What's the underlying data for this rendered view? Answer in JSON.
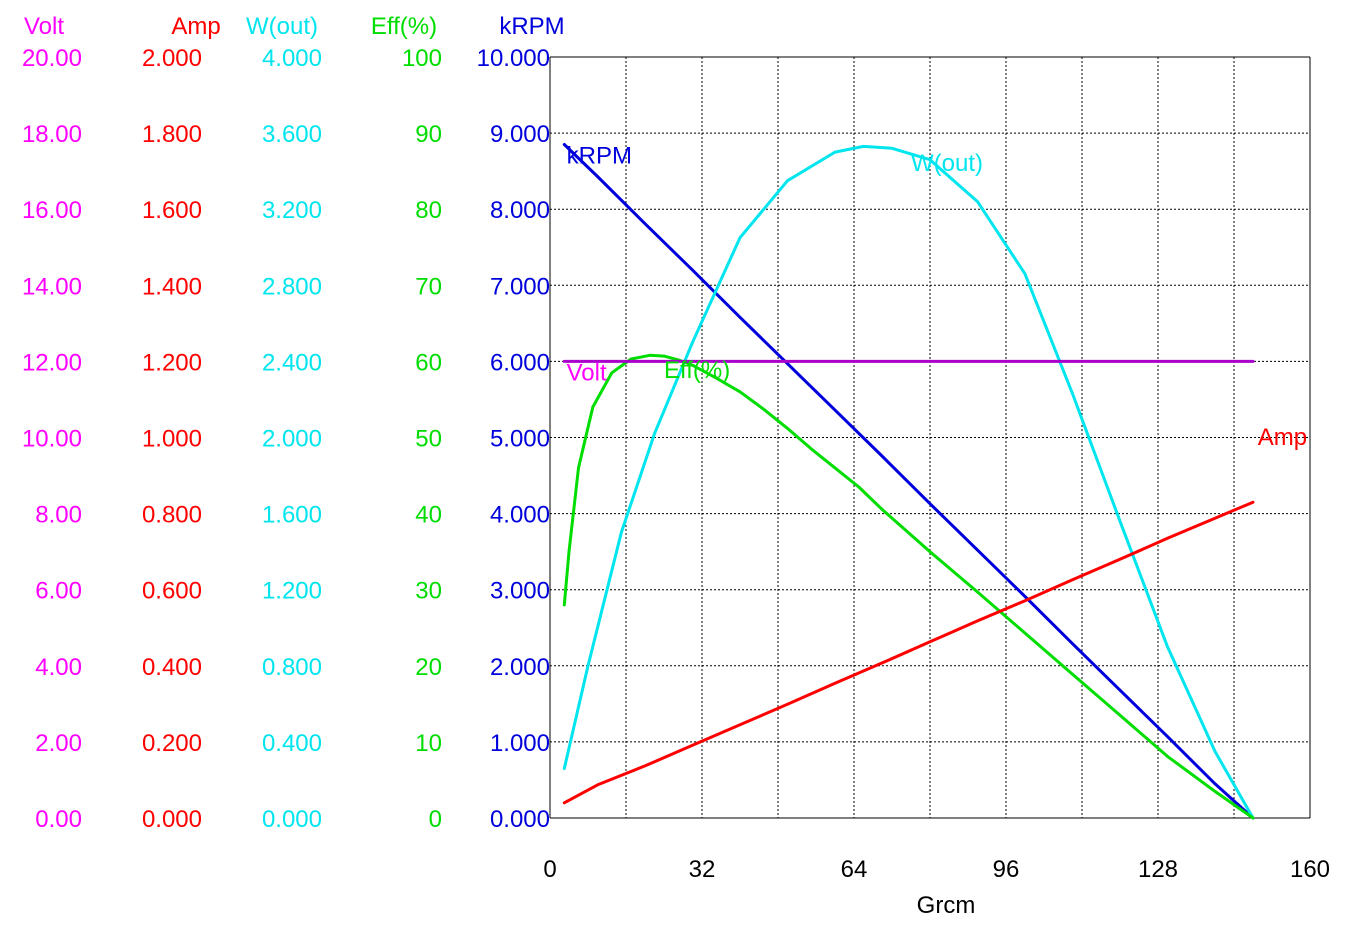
{
  "chart_data": {
    "type": "line",
    "title": "",
    "xlabel": "Grcm",
    "x_ticks": [
      "0",
      "32",
      "64",
      "96",
      "128",
      "160"
    ],
    "xlim": [
      0,
      160
    ],
    "grid": true,
    "axes": [
      {
        "name": "Volt",
        "color": "#ff00ff",
        "range": [
          0,
          20
        ],
        "ticks": [
          "0.00",
          "2.00",
          "4.00",
          "6.00",
          "8.00",
          "10.00",
          "12.00",
          "14.00",
          "16.00",
          "18.00",
          "20.00"
        ]
      },
      {
        "name": "Amp",
        "color": "#ff0000",
        "range": [
          0,
          2
        ],
        "ticks": [
          "0.000",
          "0.200",
          "0.400",
          "0.600",
          "0.800",
          "1.000",
          "1.200",
          "1.400",
          "1.600",
          "1.800",
          "2.000"
        ]
      },
      {
        "name": "W(out)",
        "color": "#00e5ee",
        "range": [
          0,
          4
        ],
        "ticks": [
          "0.000",
          "0.400",
          "0.800",
          "1.200",
          "1.600",
          "2.000",
          "2.400",
          "2.800",
          "3.200",
          "3.600",
          "4.000"
        ]
      },
      {
        "name": "Eff(%)",
        "color": "#00dd00",
        "range": [
          0,
          100
        ],
        "ticks": [
          "0",
          "10",
          "20",
          "30",
          "40",
          "50",
          "60",
          "70",
          "80",
          "90",
          "100"
        ]
      },
      {
        "name": "kRPM",
        "color": "#0000dd",
        "range": [
          0,
          10
        ],
        "ticks": [
          "0.000",
          "1.000",
          "2.000",
          "3.000",
          "4.000",
          "5.000",
          "6.000",
          "7.000",
          "8.000",
          "9.000",
          "10.000"
        ]
      }
    ],
    "series": [
      {
        "name": "kRPM",
        "axis": 4,
        "color": "#0000dd",
        "x": [
          3,
          10,
          20,
          30,
          40,
          50,
          60,
          70,
          80,
          90,
          100,
          110,
          120,
          130,
          140,
          148
        ],
        "y": [
          8.85,
          8.43,
          7.81,
          7.2,
          6.58,
          5.97,
          5.36,
          4.75,
          4.13,
          3.52,
          2.91,
          2.29,
          1.68,
          1.07,
          0.45,
          0.0
        ]
      },
      {
        "name": "W(out)",
        "axis": 2,
        "color": "#00e5ee",
        "x": [
          3,
          8,
          15,
          22,
          30,
          40,
          50,
          60,
          66,
          72,
          80,
          90,
          100,
          110,
          120,
          130,
          140,
          148
        ],
        "y": [
          0.26,
          0.8,
          1.5,
          2.02,
          2.5,
          3.05,
          3.35,
          3.5,
          3.53,
          3.52,
          3.46,
          3.24,
          2.86,
          2.23,
          1.56,
          0.9,
          0.35,
          0.0
        ]
      },
      {
        "name": "Eff(%)",
        "axis": 3,
        "color": "#00dd00",
        "x": [
          3,
          4,
          6,
          9,
          13,
          17,
          21,
          24,
          27,
          30,
          35,
          40,
          45,
          50,
          55,
          60,
          65,
          70,
          80,
          90,
          100,
          110,
          120,
          130,
          140,
          148
        ],
        "y": [
          28,
          35,
          46,
          54,
          58.5,
          60.3,
          60.8,
          60.7,
          60.2,
          59.5,
          57.8,
          56,
          53.7,
          51.2,
          48.5,
          46,
          43.5,
          40.5,
          35,
          29.7,
          24.3,
          18.9,
          13.5,
          8.1,
          3.5,
          0
        ]
      },
      {
        "name": "Amp",
        "axis": 1,
        "color": "#ff0000",
        "x": [
          3,
          10,
          20,
          30,
          40,
          50,
          60,
          70,
          80,
          90,
          100,
          110,
          120,
          130,
          140,
          148
        ],
        "y": [
          0.04,
          0.087,
          0.137,
          0.191,
          0.245,
          0.299,
          0.354,
          0.408,
          0.463,
          0.518,
          0.571,
          0.626,
          0.68,
          0.735,
          0.788,
          0.83
        ]
      },
      {
        "name": "Volt",
        "axis": 0,
        "color": "#aa00cc",
        "x": [
          3,
          148
        ],
        "y": [
          12.0,
          12.0
        ]
      }
    ],
    "series_labels": [
      {
        "text": "kRPM",
        "color": "#0000dd",
        "x": 3.5,
        "y_axis": 4,
        "y": 8.6
      },
      {
        "text": "W(out)",
        "color": "#00e5ee",
        "x": 76,
        "y_axis": 2,
        "y": 3.4
      },
      {
        "text": "Eff(%)",
        "color": "#00dd00",
        "x": 24,
        "y_axis": 3,
        "y": 57.8
      },
      {
        "text": "Volt",
        "color": "#ff00ff",
        "x": 3.5,
        "y_axis": 0,
        "y": 11.5
      },
      {
        "text": "Amp",
        "color": "#ff0000",
        "x": 149,
        "y_axis": 1,
        "y": 0.98
      }
    ]
  }
}
